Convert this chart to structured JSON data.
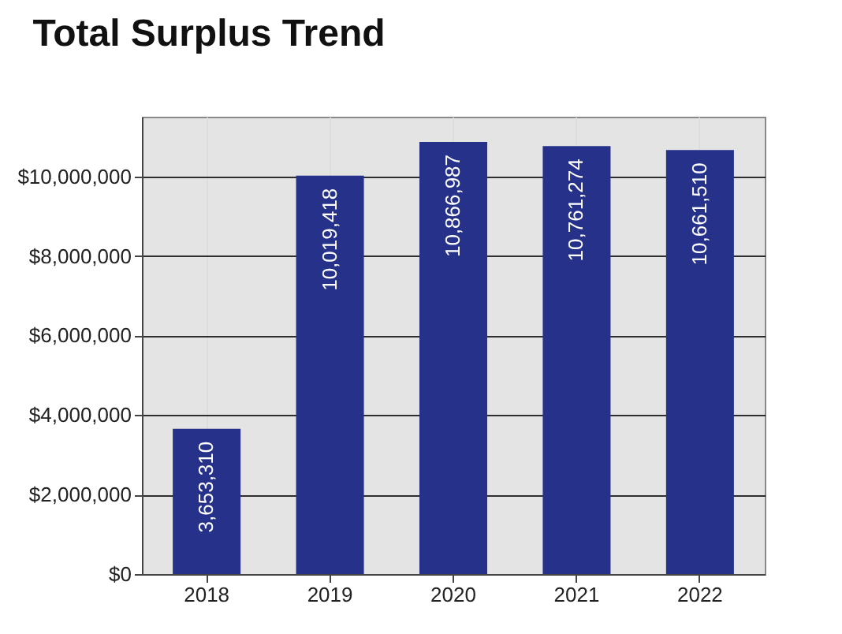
{
  "chart_data": {
    "type": "bar",
    "title": "Total Surplus Trend",
    "categories": [
      "2018",
      "2019",
      "2020",
      "2021",
      "2022"
    ],
    "values": [
      3653310,
      10019418,
      10866987,
      10761274,
      10661510
    ],
    "value_labels": [
      "3,653,310",
      "10,019,418",
      "10,866,987",
      "10,761,274",
      "10,661,510"
    ],
    "color": "#26328a",
    "ylim": [
      0,
      11500000
    ],
    "yticks": [
      {
        "value": 0,
        "label": "$0"
      },
      {
        "value": 2000000,
        "label": "$2,000,000"
      },
      {
        "value": 4000000,
        "label": "$4,000,000"
      },
      {
        "value": 6000000,
        "label": "$6,000,000"
      },
      {
        "value": 8000000,
        "label": "$8,000,000"
      },
      {
        "value": 10000000,
        "label": "$10,000,000"
      }
    ],
    "grid": true
  }
}
